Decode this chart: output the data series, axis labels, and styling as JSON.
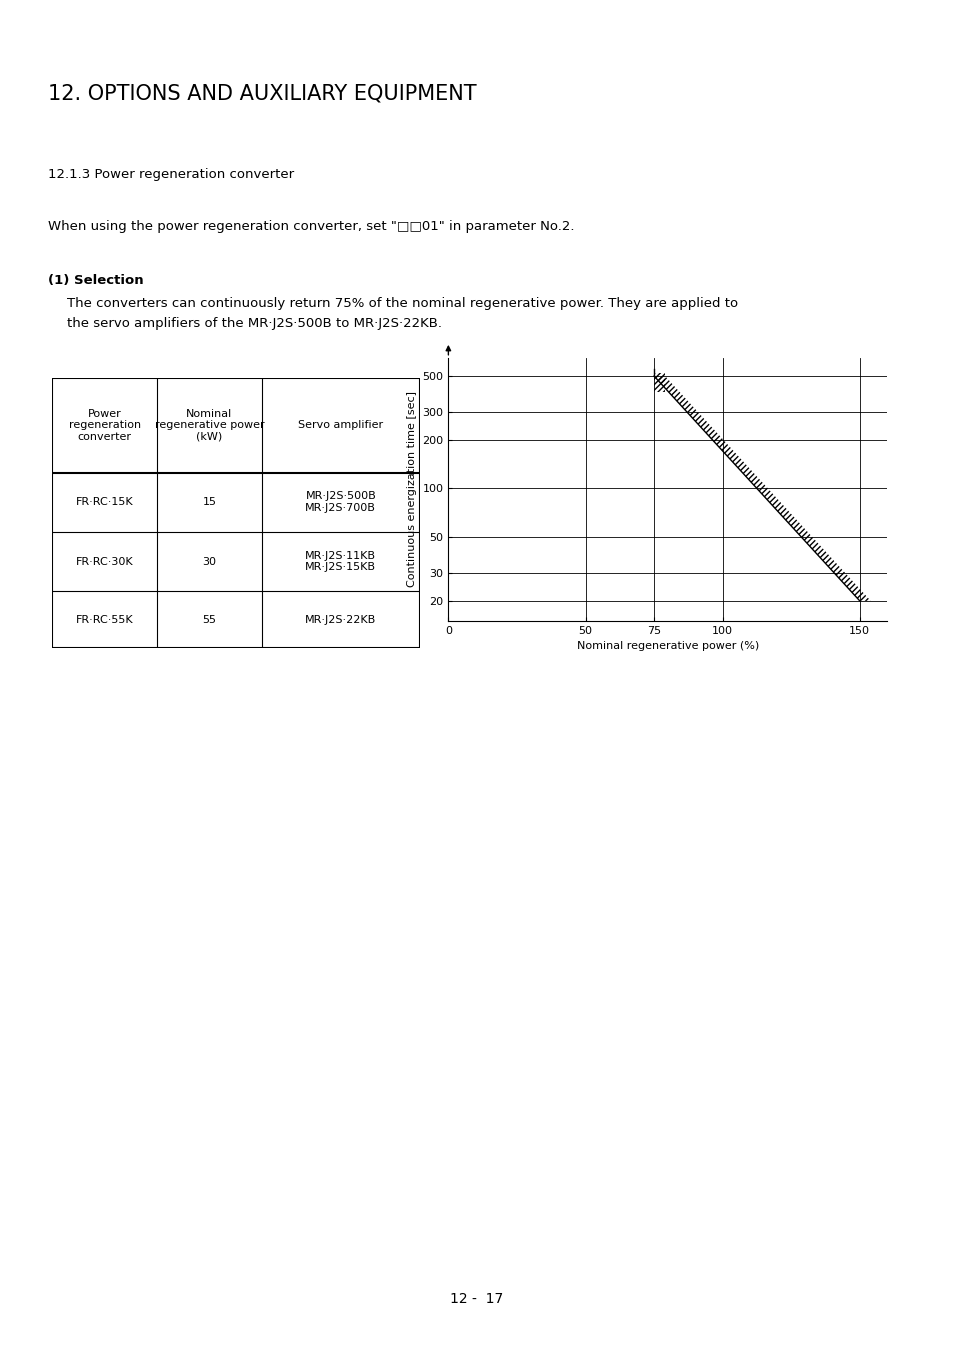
{
  "title": "12. OPTIONS AND AUXILIARY EQUIPMENT",
  "section": "12.1.3 Power regeneration converter",
  "para1": "When using the power regeneration converter, set \"□□01\" in parameter No.2.",
  "subsection": "(1) Selection",
  "body_text1": "The converters can continuously return 75% of the nominal regenerative power. They are applied to",
  "body_text2": "the servo amplifiers of the MR·J2S·500B to MR·J2S·22KB.",
  "table_headers": [
    "Power\nregeneration\nconverter",
    "Nominal\nregenerative power\n(kW)",
    "Servo amplifier"
  ],
  "table_rows": [
    [
      "FR·RC·15K",
      "15",
      "MR·J2S·500B\nMR·J2S·700B"
    ],
    [
      "FR·RC·30K",
      "30",
      "MR·J2S·11KB\nMR·J2S·15KB"
    ],
    [
      "FR·RC·55K",
      "55",
      "MR·J2S·22KB"
    ]
  ],
  "chart_xlabel": "Nominal regenerative power (%)",
  "chart_ylabel": "Continuous energization time [sec]",
  "chart_xticks": [
    0,
    50,
    75,
    100,
    150
  ],
  "chart_yticks": [
    20,
    30,
    50,
    100,
    200,
    300,
    500
  ],
  "chart_xlim": [
    0,
    160
  ],
  "chart_ylim_log": [
    15,
    650
  ],
  "footer": "12 -  17",
  "bg_color": "#ffffff"
}
